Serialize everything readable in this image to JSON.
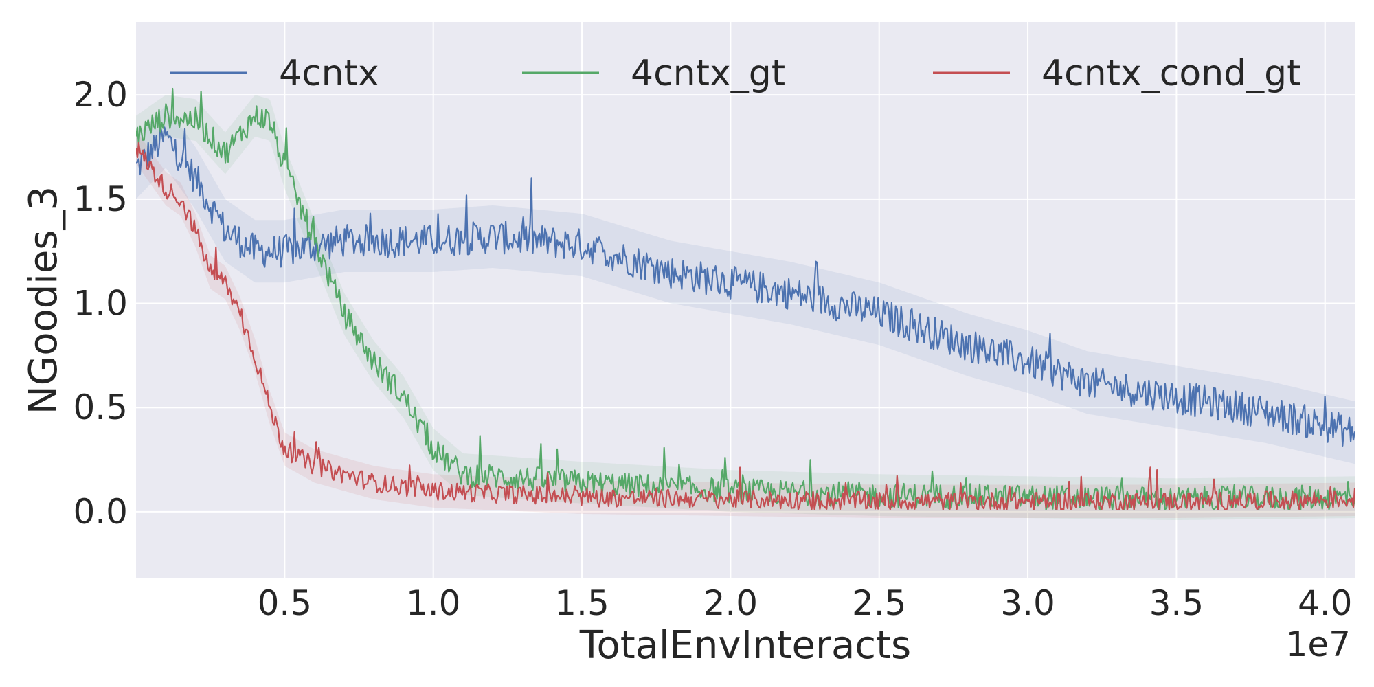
{
  "chart_data": {
    "type": "line",
    "title": "",
    "xlabel": "TotalEnvInteracts",
    "ylabel": "NGoodies_3",
    "x_offset_label": "1e7",
    "xlim": [
      0.0,
      4.1
    ],
    "ylim": [
      -0.32,
      2.35
    ],
    "xticks": [
      0.5,
      1.0,
      1.5,
      2.0,
      2.5,
      3.0,
      3.5,
      4.0
    ],
    "xtick_labels": [
      "0.5",
      "1.0",
      "1.5",
      "2.0",
      "2.5",
      "3.0",
      "3.5",
      "4.0"
    ],
    "yticks": [
      0.0,
      0.5,
      1.0,
      1.5,
      2.0
    ],
    "ytick_labels": [
      "0.0",
      "0.5",
      "1.0",
      "1.5",
      "2.0"
    ],
    "grid": true,
    "legend_position": "top",
    "colors": {
      "background": "#eaeaf2",
      "grid": "#ffffff",
      "text": "#262626"
    },
    "series": [
      {
        "name": "4cntx",
        "color": "#4c72b0",
        "x": [
          0.0,
          0.1,
          0.2,
          0.3,
          0.4,
          0.5,
          0.7,
          1.0,
          1.2,
          1.5,
          1.8,
          2.0,
          2.2,
          2.5,
          2.8,
          3.0,
          3.2,
          3.5,
          3.8,
          4.1
        ],
        "y": [
          1.65,
          1.8,
          1.6,
          1.35,
          1.25,
          1.25,
          1.3,
          1.3,
          1.32,
          1.28,
          1.15,
          1.1,
          1.05,
          0.95,
          0.8,
          0.72,
          0.62,
          0.55,
          0.48,
          0.38
        ],
        "noise": 0.08,
        "band": 0.15
      },
      {
        "name": "4cntx_gt",
        "color": "#55a868",
        "x": [
          0.0,
          0.1,
          0.2,
          0.3,
          0.4,
          0.45,
          0.5,
          0.6,
          0.7,
          0.8,
          0.9,
          1.0,
          1.1,
          1.3,
          1.5,
          2.0,
          2.5,
          3.0,
          3.5,
          4.1
        ],
        "y": [
          1.8,
          1.9,
          1.88,
          1.72,
          1.9,
          1.88,
          1.65,
          1.3,
          0.95,
          0.72,
          0.55,
          0.3,
          0.18,
          0.16,
          0.14,
          0.1,
          0.08,
          0.07,
          0.06,
          0.07
        ],
        "noise": 0.06,
        "band": 0.1
      },
      {
        "name": "4cntx_cond_gt",
        "color": "#c44e52",
        "x": [
          0.0,
          0.05,
          0.1,
          0.15,
          0.2,
          0.25,
          0.3,
          0.35,
          0.4,
          0.45,
          0.5,
          0.6,
          0.8,
          1.0,
          1.5,
          2.0,
          2.5,
          3.0,
          3.5,
          4.1
        ],
        "y": [
          1.75,
          1.65,
          1.55,
          1.5,
          1.35,
          1.15,
          1.1,
          0.95,
          0.75,
          0.5,
          0.3,
          0.22,
          0.14,
          0.1,
          0.07,
          0.06,
          0.05,
          0.05,
          0.05,
          0.06
        ],
        "noise": 0.045,
        "band": 0.08
      }
    ]
  }
}
